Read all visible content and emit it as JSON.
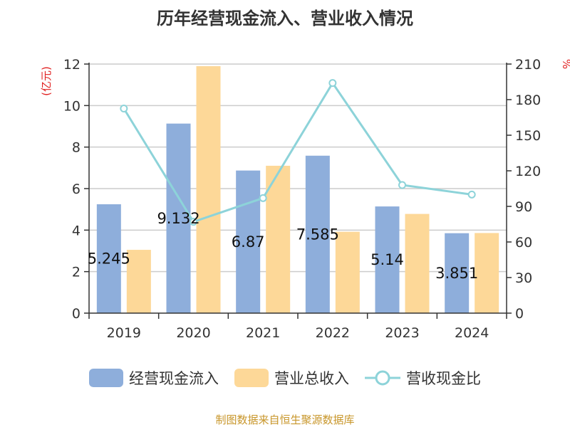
{
  "title": "历年经营现金流入、营业收入情况",
  "footer": "制图数据来自恒生聚源数据库",
  "chart_data": {
    "type": "bar",
    "categories": [
      "2019",
      "2020",
      "2021",
      "2022",
      "2023",
      "2024"
    ],
    "series": [
      {
        "name": "经营现金流入",
        "kind": "bar",
        "axis": "left",
        "color": "#8eaedb",
        "values": [
          5.245,
          9.132,
          6.87,
          7.585,
          5.14,
          3.851
        ]
      },
      {
        "name": "营业总收入",
        "kind": "bar",
        "axis": "left",
        "color": "#fdd898",
        "values": [
          3.05,
          11.9,
          7.1,
          3.92,
          4.78,
          3.86
        ]
      },
      {
        "name": "营收现金比",
        "kind": "line",
        "axis": "right",
        "color": "#8dd3d9",
        "values": [
          172.5,
          77,
          97,
          194,
          108,
          100
        ]
      }
    ],
    "data_labels": [
      "5.245",
      "9.132",
      "6.87",
      "7.585",
      "5.14",
      "3.851"
    ],
    "left_axis": {
      "unit": "(亿元)",
      "min": 0,
      "max": 12,
      "ticks": [
        0,
        2,
        4,
        6,
        8,
        10,
        12
      ]
    },
    "right_axis": {
      "unit": "%",
      "min": 0,
      "max": 210,
      "ticks": [
        0,
        30,
        60,
        90,
        120,
        150,
        180,
        210
      ]
    },
    "grid": true,
    "legend_position": "bottom"
  }
}
